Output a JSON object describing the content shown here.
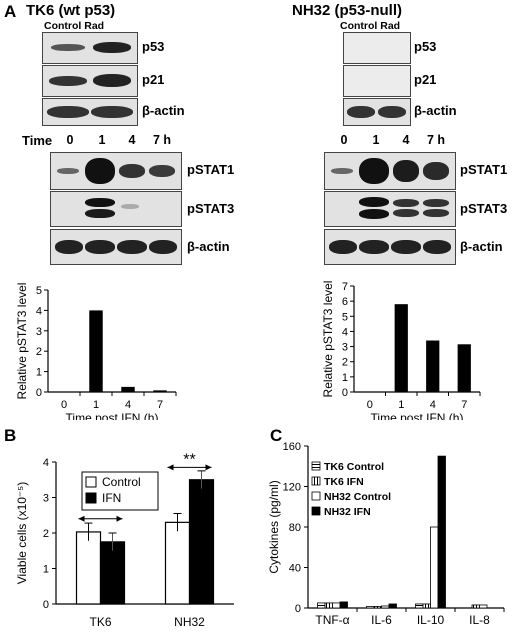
{
  "figure": {
    "panel_a": {
      "letter": "A",
      "left_title": "TK6 (wt p53)",
      "right_title": "NH32 (p53-null)",
      "left_cond": "Control Rad",
      "right_cond": "Control Rad",
      "rows_top": [
        "p53",
        "p21",
        "β-actin"
      ],
      "time_label": "Time",
      "times": [
        "0",
        "1",
        "4",
        "7 h"
      ],
      "rows_bottom": [
        "pSTAT1",
        "pSTAT3",
        "β-actin"
      ]
    },
    "panel_b": {
      "letter": "B"
    },
    "panel_c": {
      "letter": "C"
    }
  },
  "chart_data": [
    {
      "type": "bar",
      "categories": [
        "0",
        "1",
        "4",
        "7"
      ],
      "values": [
        0,
        4.0,
        0.25,
        0.08
      ],
      "xlabel": "Time post IFN (h)",
      "ylabel": "Relative pSTAT3 level",
      "ylim": [
        0,
        5
      ],
      "yticks": [
        "0",
        "1",
        "2",
        "3",
        "4",
        "5"
      ],
      "color": "#000000"
    },
    {
      "type": "bar",
      "categories": [
        "0",
        "1",
        "4",
        "7"
      ],
      "values": [
        0,
        5.8,
        3.4,
        3.15
      ],
      "xlabel": "Time post IFN (h)",
      "ylabel": "Relative pSTAT3 level",
      "ylim": [
        0,
        7
      ],
      "yticks": [
        "0",
        "1",
        "2",
        "3",
        "4",
        "5",
        "6",
        "7"
      ],
      "color": "#000000"
    },
    {
      "type": "bar",
      "categories": [
        "TK6",
        "NH32"
      ],
      "series": [
        {
          "name": "Control",
          "values": [
            2.03,
            2.3
          ],
          "errors": [
            0.25,
            0.25
          ],
          "color": "#ffffff"
        },
        {
          "name": "IFN",
          "values": [
            1.75,
            3.5
          ],
          "errors": [
            0.25,
            0.25
          ],
          "color": "#000000"
        }
      ],
      "ylabel": "Viable cells (x10⁻⁵)",
      "ylim": [
        0,
        4
      ],
      "yticks": [
        "0",
        "1",
        "2",
        "3",
        "4"
      ],
      "legend": "top-left",
      "annotations": [
        "*",
        "**"
      ]
    },
    {
      "type": "bar",
      "categories": [
        "TNF-α",
        "IL-6",
        "IL-10",
        "IL-8"
      ],
      "series": [
        {
          "name": "TK6 Control",
          "values": [
            5,
            1.5,
            4,
            0
          ],
          "color": "#ffffff",
          "pattern": "hlines"
        },
        {
          "name": "TK6 IFN",
          "values": [
            5,
            1.5,
            4,
            3
          ],
          "color": "#ffffff",
          "pattern": "vlines"
        },
        {
          "name": "NH32 Control",
          "values": [
            5,
            2,
            80,
            3
          ],
          "color": "#ffffff",
          "pattern": "none"
        },
        {
          "name": "NH32 IFN",
          "values": [
            6,
            4,
            150,
            0
          ],
          "color": "#000000",
          "pattern": "none"
        }
      ],
      "ylabel": "Cytokines (pg/ml)",
      "ylim": [
        0,
        160
      ],
      "yticks": [
        "0",
        "40",
        "80",
        "120",
        "160"
      ],
      "legend": "top-left"
    }
  ]
}
